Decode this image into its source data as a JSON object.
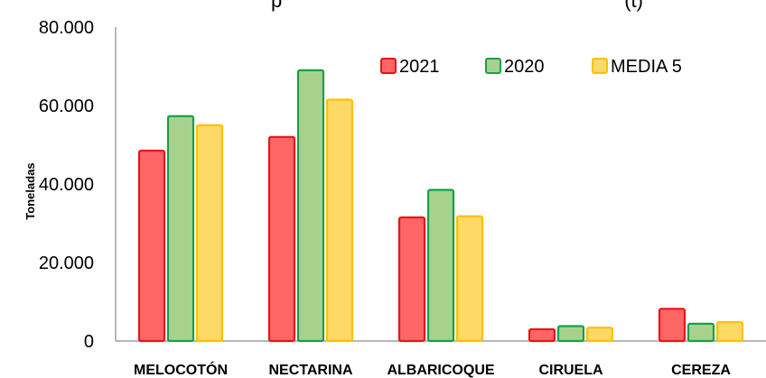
{
  "chart_data": {
    "type": "bar",
    "title": "p                                                              (t)",
    "ylabel": "Toneladas",
    "xlabel": "",
    "categories": [
      "MELOCOTÓN",
      "NECTARINA",
      "ALBARICOQUE",
      "CIRUELA",
      "CEREZA"
    ],
    "series": [
      {
        "name": "2021",
        "values": [
          48500,
          52000,
          31500,
          3000,
          8200
        ],
        "fill": "#ff6666",
        "stroke": "#e8141c"
      },
      {
        "name": "2020",
        "values": [
          57300,
          69000,
          38500,
          3800,
          4400
        ],
        "fill": "#a9d18e",
        "stroke": "#16a04a"
      },
      {
        "name": "MEDIA 5",
        "values": [
          55000,
          61500,
          31800,
          3400,
          4800
        ],
        "fill": "#ffd966",
        "stroke": "#ffc000"
      }
    ],
    "ylim": [
      0,
      80000
    ],
    "yticks": [
      0,
      20000,
      40000,
      60000,
      80000
    ],
    "ytick_labels": [
      "0",
      "20.000",
      "40.000",
      "60.000",
      "80.000"
    ],
    "grid": false,
    "legend_position": "top-right"
  }
}
